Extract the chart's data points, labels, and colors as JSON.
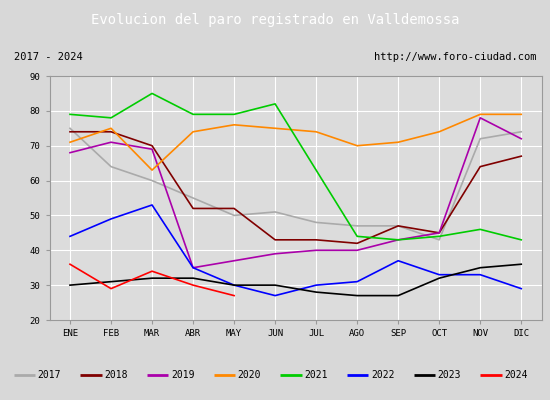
{
  "title": "Evolucion del paro registrado en Valldemossa",
  "subtitle_left": "2017 - 2024",
  "subtitle_right": "http://www.foro-ciudad.com",
  "xlabel_months": [
    "ENE",
    "FEB",
    "MAR",
    "ABR",
    "MAY",
    "JUN",
    "JUL",
    "AGO",
    "SEP",
    "OCT",
    "NOV",
    "DIC"
  ],
  "ylim": [
    20,
    90
  ],
  "yticks": [
    20,
    30,
    40,
    50,
    60,
    70,
    80,
    90
  ],
  "series": {
    "2017": {
      "color": "#aaaaaa",
      "data": [
        75,
        64,
        60,
        55,
        50,
        51,
        48,
        47,
        47,
        43,
        72,
        74
      ]
    },
    "2018": {
      "color": "#800000",
      "data": [
        74,
        74,
        70,
        52,
        52,
        43,
        43,
        42,
        47,
        45,
        64,
        67
      ]
    },
    "2019": {
      "color": "#aa00aa",
      "data": [
        68,
        71,
        69,
        35,
        37,
        39,
        40,
        40,
        43,
        45,
        78,
        72
      ]
    },
    "2020": {
      "color": "#ff8800",
      "data": [
        71,
        75,
        63,
        74,
        76,
        75,
        74,
        70,
        71,
        74,
        79,
        79
      ]
    },
    "2021": {
      "color": "#00cc00",
      "data": [
        79,
        78,
        85,
        79,
        79,
        82,
        63,
        44,
        43,
        44,
        46,
        43
      ]
    },
    "2022": {
      "color": "#0000ff",
      "data": [
        44,
        49,
        53,
        35,
        30,
        27,
        30,
        31,
        37,
        33,
        33,
        29
      ]
    },
    "2023": {
      "color": "#000000",
      "data": [
        30,
        31,
        32,
        32,
        30,
        30,
        28,
        27,
        27,
        32,
        35,
        36
      ]
    },
    "2024": {
      "color": "#ff0000",
      "data": [
        36,
        29,
        34,
        30,
        27,
        null,
        null,
        null,
        null,
        null,
        null,
        null
      ]
    }
  },
  "background_color": "#d8d8d8",
  "plot_bg_color": "#dcdcdc",
  "title_bg_color": "#4a86c8",
  "title_text_color": "#ffffff",
  "grid_color": "#ffffff",
  "box_color": "#f0f0f0"
}
